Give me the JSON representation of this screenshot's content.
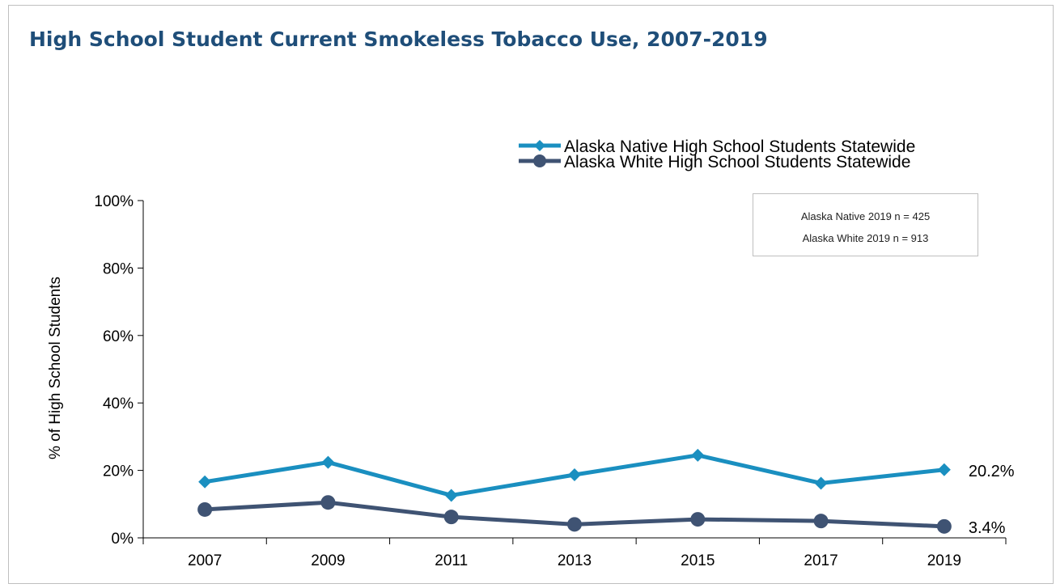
{
  "chart_data": {
    "type": "line",
    "title": "High School Student Current Smokeless Tobacco Use, 2007-2019",
    "ylabel": "% of High School Students",
    "xlabel": "",
    "categories": [
      "2007",
      "2009",
      "2011",
      "2013",
      "2015",
      "2017",
      "2019"
    ],
    "ylim": [
      0,
      100
    ],
    "yticks": [
      0,
      20,
      40,
      60,
      80,
      100
    ],
    "ytick_labels": [
      "0%",
      "20%",
      "40%",
      "60%",
      "80%",
      "100%"
    ],
    "grid": false,
    "legend_position": "top-right",
    "series": [
      {
        "name": "Alaska Native High School Students Statewide",
        "marker": "diamond",
        "color": "#1a8fc0",
        "values": [
          16.6,
          22.4,
          12.6,
          18.7,
          24.5,
          16.2,
          20.2
        ],
        "end_label": "20.2%"
      },
      {
        "name": "Alaska White High School Students Statewide",
        "marker": "circle",
        "color": "#3f5373",
        "values": [
          8.4,
          10.5,
          6.2,
          4.0,
          5.5,
          5.0,
          3.4
        ],
        "end_label": "3.4%"
      }
    ],
    "annotations": [
      "Alaska Native 2019 n = 425",
      "Alaska White 2019 n = 913"
    ]
  }
}
